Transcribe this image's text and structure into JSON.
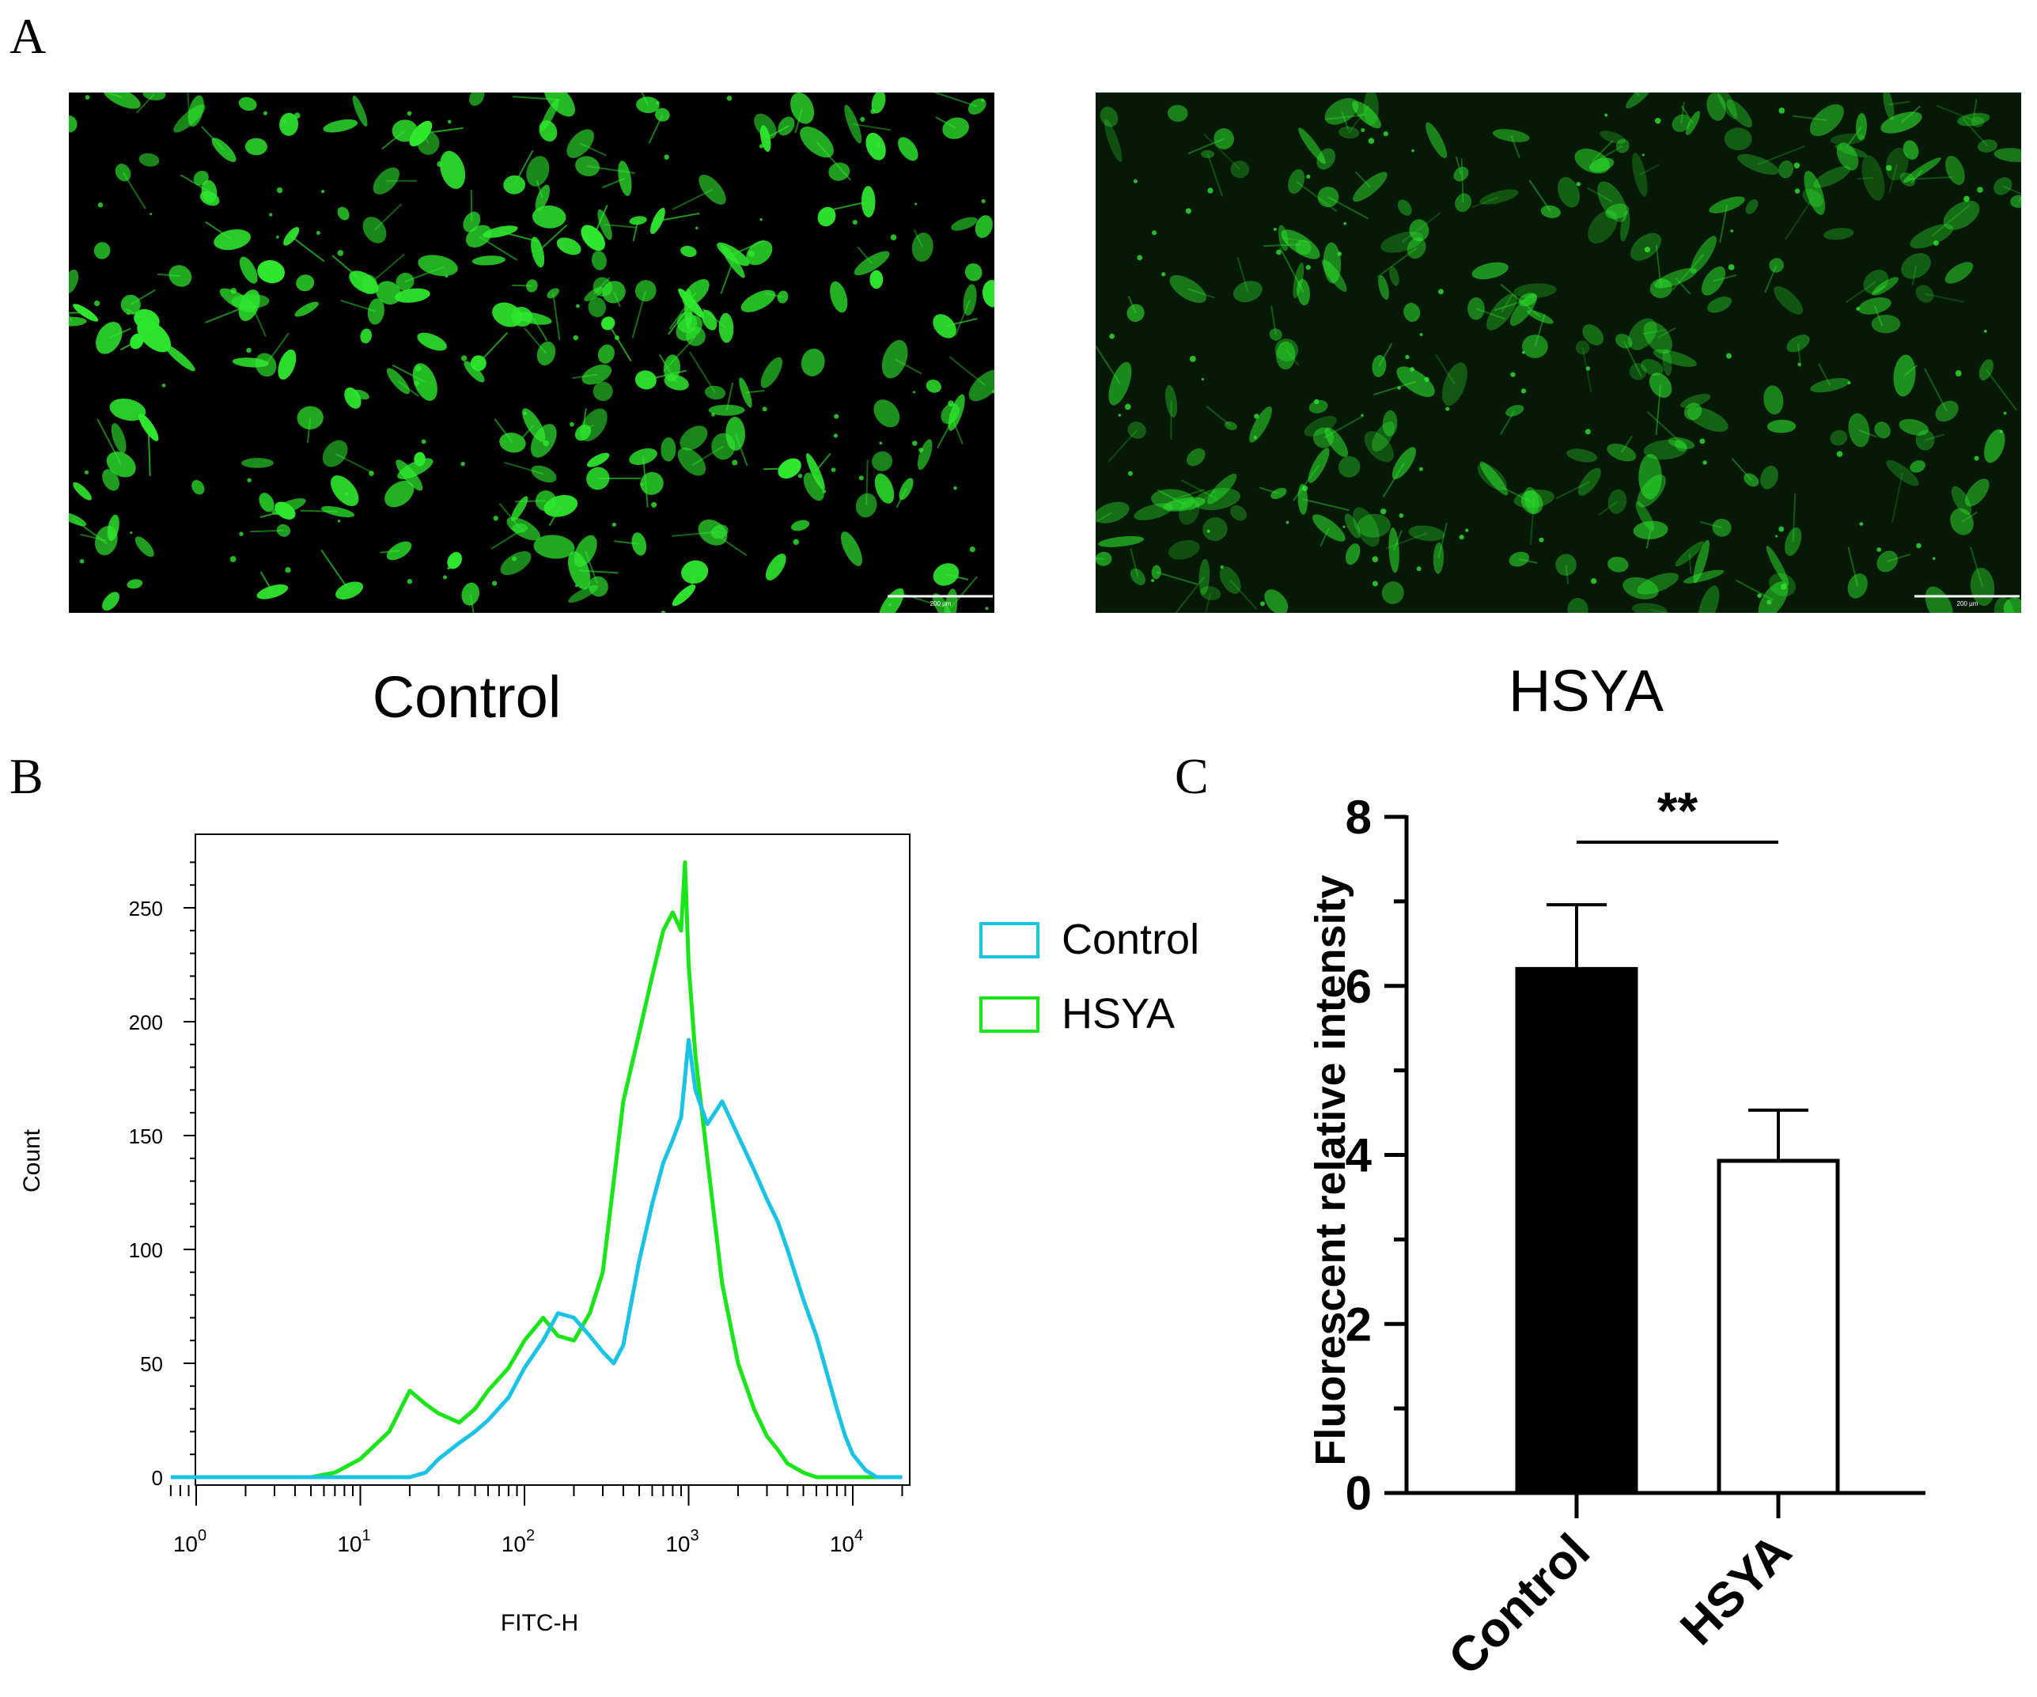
{
  "panels": {
    "a": {
      "letter": "A",
      "left_caption": "Control",
      "right_caption": "HSYA",
      "scale_text": "200 μm"
    },
    "b": {
      "letter": "B"
    },
    "c": {
      "letter": "C"
    }
  },
  "colors": {
    "control": "#19c3e6",
    "hsya": "#19e619",
    "cell_green": "#2ee82e",
    "bar_control": "#000000",
    "bar_hsya": "#ffffff"
  },
  "chart_data": [
    {
      "type": "line",
      "xlabel": "FITC-H",
      "ylabel": "Count",
      "x_scale": "log",
      "xlim": [
        0.7,
        20000
      ],
      "ylim": [
        0,
        280
      ],
      "x_ticks": [
        {
          "value": 1,
          "base": "10",
          "exp": "0"
        },
        {
          "value": 10,
          "base": "10",
          "exp": "1"
        },
        {
          "value": 100,
          "base": "10",
          "exp": "2"
        },
        {
          "value": 1000,
          "base": "10",
          "exp": "3"
        },
        {
          "value": 10000,
          "base": "10",
          "exp": "4"
        }
      ],
      "y_ticks": [
        0,
        50,
        100,
        150,
        200,
        250
      ],
      "legend": {
        "placement": "right"
      },
      "series": [
        {
          "name": "Control",
          "x": [
            0.7,
            20,
            25,
            30,
            40,
            50,
            60,
            80,
            100,
            130,
            160,
            200,
            250,
            300,
            350,
            400,
            500,
            600,
            700,
            800,
            900,
            1000,
            1100,
            1300,
            1600,
            2000,
            2500,
            3000,
            3500,
            4000,
            5000,
            6000,
            7000,
            8000,
            9000,
            10000,
            12000,
            14000,
            15000,
            20000
          ],
          "y": [
            0,
            0,
            2,
            8,
            15,
            20,
            25,
            35,
            48,
            60,
            72,
            70,
            62,
            55,
            50,
            58,
            95,
            120,
            138,
            148,
            158,
            192,
            170,
            155,
            165,
            150,
            135,
            122,
            112,
            100,
            78,
            62,
            45,
            30,
            18,
            10,
            3,
            0,
            0,
            0
          ]
        },
        {
          "name": "HSYA",
          "x": [
            0.7,
            5,
            7,
            10,
            15,
            20,
            25,
            30,
            40,
            50,
            60,
            80,
            100,
            130,
            160,
            200,
            250,
            300,
            350,
            400,
            500,
            600,
            700,
            800,
            900,
            950,
            1000,
            1100,
            1300,
            1600,
            2000,
            2500,
            3000,
            3500,
            4000,
            5000,
            6000,
            7000,
            20000
          ],
          "y": [
            0,
            0,
            2,
            8,
            20,
            38,
            32,
            28,
            24,
            30,
            38,
            48,
            60,
            70,
            62,
            60,
            72,
            90,
            130,
            165,
            195,
            220,
            240,
            248,
            240,
            270,
            225,
            185,
            140,
            85,
            50,
            30,
            18,
            12,
            6,
            2,
            0,
            0,
            0
          ]
        }
      ]
    },
    {
      "type": "bar",
      "categories": [
        "Control",
        "HSYA"
      ],
      "values": [
        6.2,
        3.93
      ],
      "errors": [
        0.76,
        0.6
      ],
      "ylabel": "Fluorescent relative intensity",
      "ylim": [
        0,
        8
      ],
      "y_ticks": [
        0,
        2,
        4,
        6,
        8
      ],
      "significance": {
        "label": "**",
        "between": [
          0,
          1
        ]
      }
    }
  ]
}
